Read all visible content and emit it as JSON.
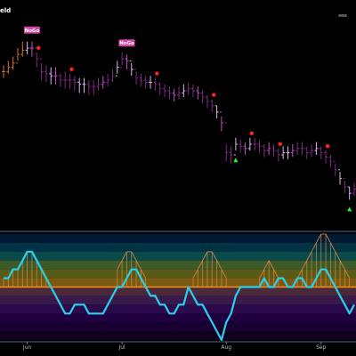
{
  "chart_data": [
    {
      "type": "ohlc",
      "title": "eld",
      "ylim": [
        0,
        100
      ],
      "x_ticks": [
        "Jun",
        "Jul",
        "Aug",
        "Sep"
      ],
      "x_tick_index": [
        5,
        25,
        47,
        67
      ],
      "nogo_label": "NoGo",
      "nogo_index": [
        6,
        26
      ],
      "colors": {
        "nogo": "#7e2a86",
        "nogo_strong": "#c34fc9",
        "weak": "#d8b8e8",
        "early": "#d9731c",
        "label_bg": "#d545a0",
        "dot": "#ff2222",
        "triangle": "#22ff22"
      },
      "red_dot_index": [
        7,
        14,
        32,
        44,
        52,
        58,
        68
      ],
      "green_tri_index": [
        49,
        73
      ],
      "series": {
        "close": [
          74,
          76,
          78,
          82,
          84,
          85,
          85,
          80,
          74,
          73,
          72,
          72,
          70,
          70,
          70,
          69,
          68,
          68,
          67,
          67,
          68,
          69,
          70,
          72,
          76,
          80,
          79,
          75,
          71,
          70,
          69,
          69,
          68,
          66,
          65,
          64,
          63,
          64,
          65,
          66,
          65,
          64,
          62,
          60,
          58,
          55,
          50,
          36,
          35,
          40,
          39,
          38,
          40,
          40,
          39,
          37,
          38,
          37,
          35,
          36,
          36,
          37,
          38,
          38,
          36,
          37,
          38,
          36,
          34,
          32,
          28,
          24,
          20,
          17,
          19
        ],
        "high": [
          77,
          79,
          81,
          85,
          88,
          88,
          88,
          83,
          78,
          77,
          76,
          76,
          73,
          74,
          73,
          72,
          71,
          71,
          70,
          70,
          71,
          72,
          73,
          75,
          79,
          83,
          82,
          78,
          74,
          73,
          72,
          72,
          71,
          69,
          68,
          67,
          66,
          67,
          68,
          69,
          68,
          67,
          65,
          63,
          61,
          58,
          53,
          40,
          39,
          43,
          42,
          41,
          43,
          43,
          42,
          40,
          41,
          40,
          38,
          39,
          39,
          40,
          41,
          41,
          39,
          40,
          41,
          39,
          37,
          35,
          31,
          27,
          23,
          20,
          22
        ],
        "low": [
          71,
          73,
          75,
          79,
          81,
          82,
          81,
          76,
          70,
          69,
          68,
          68,
          67,
          66,
          66,
          65,
          64,
          64,
          63,
          63,
          65,
          66,
          67,
          69,
          73,
          77,
          75,
          72,
          68,
          67,
          66,
          66,
          65,
          63,
          62,
          61,
          60,
          61,
          62,
          63,
          62,
          61,
          59,
          57,
          55,
          52,
          46,
          32,
          31,
          37,
          36,
          35,
          37,
          37,
          36,
          34,
          35,
          34,
          32,
          33,
          33,
          34,
          35,
          35,
          33,
          34,
          35,
          33,
          31,
          29,
          25,
          21,
          17,
          14,
          16
        ]
      }
    },
    {
      "type": "oscillator",
      "ylim": [
        -6,
        6
      ],
      "zero_level": 0,
      "band_levels": [
        6,
        5,
        4,
        3,
        2,
        1,
        0,
        -1,
        -2,
        -3,
        -4,
        -5,
        -6
      ],
      "band_colors": [
        "#001a33",
        "#003344",
        "#0b4a4a",
        "#3c5a2a",
        "#5a5a18",
        "#7a5a10",
        "#4a2a3a",
        "#3a1a4a",
        "#2a0a4a",
        "#200040",
        "#180030",
        "#100020"
      ],
      "colors": {
        "line": "#28d0ee",
        "mesh": "#e0883a",
        "zero": "#ff8c1a"
      },
      "line": [
        1,
        1,
        2,
        2,
        3,
        4,
        4,
        3,
        2,
        1,
        0,
        -1,
        -2,
        -3,
        -3,
        -2,
        -2,
        -2,
        -3,
        -3,
        -3,
        -3,
        -2,
        -1,
        0,
        0,
        1,
        2,
        2,
        1,
        0,
        -1,
        -1,
        -2,
        -2,
        -3,
        -3,
        -2,
        -2,
        0,
        -1,
        -2,
        -2,
        -3,
        -4,
        -5,
        -6,
        -4,
        -3,
        -1,
        0,
        0,
        0,
        0,
        0,
        1,
        0,
        0,
        1,
        1,
        0,
        0,
        1,
        1,
        0,
        0,
        1,
        2,
        2,
        1,
        0,
        -1,
        -2,
        -3,
        -2
      ],
      "mesh": [
        1,
        1,
        2,
        2,
        3,
        4,
        4,
        3,
        2,
        1,
        0,
        0,
        0,
        0,
        0,
        0,
        0,
        0,
        0,
        0,
        0,
        0,
        0,
        0,
        2,
        3,
        4,
        4,
        3,
        2,
        1,
        0,
        0,
        0,
        0,
        0,
        0,
        0,
        0,
        0,
        1,
        2,
        3,
        4,
        4,
        3,
        2,
        1,
        0,
        0,
        0,
        0,
        0,
        0,
        1,
        2,
        3,
        2,
        1,
        0,
        0,
        0,
        1,
        2,
        3,
        4,
        5,
        6,
        6,
        5,
        4,
        3,
        2,
        1,
        0
      ]
    }
  ]
}
